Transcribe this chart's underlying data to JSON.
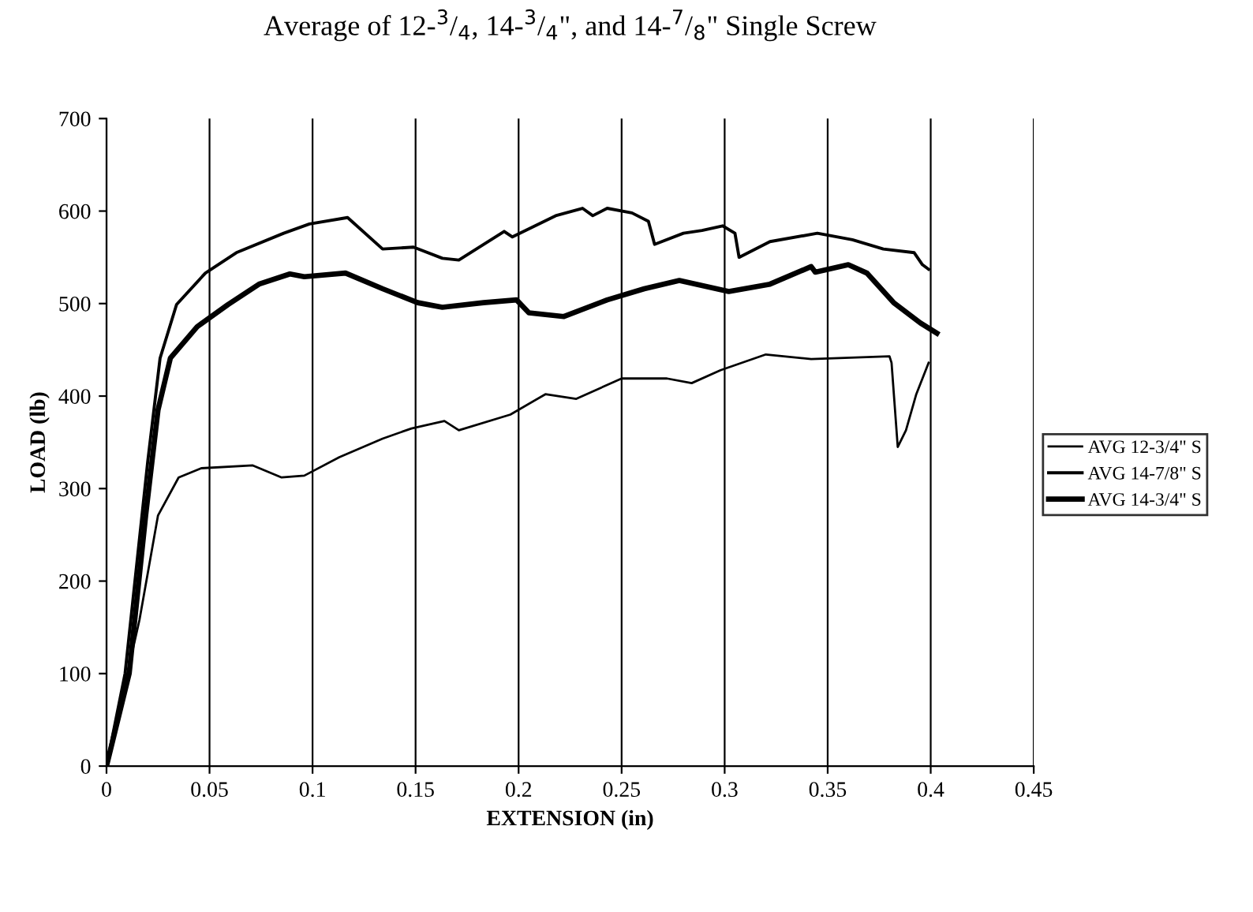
{
  "chart_data": {
    "type": "line",
    "title": "Average of 12-$^{3}$/$_{4}$, 14-$^{3}$/$_{4}$\", and 14-$^{7}$/$_{8}$\" Single Screw",
    "xlabel": "EXTENSION (in)",
    "ylabel": "LOAD (lb)",
    "xlim": [
      0,
      0.45
    ],
    "xticks": [
      0,
      0.05,
      0.1,
      0.15,
      0.2,
      0.25,
      0.3,
      0.35,
      0.4,
      0.45
    ],
    "ylim": [
      0,
      700
    ],
    "yticks": [
      0,
      100,
      200,
      300,
      400,
      500,
      600,
      700
    ],
    "grid": "x",
    "legend": "right",
    "marker": "none",
    "line_style": "solid",
    "series": [
      {
        "name": "AVG 12-3/4\" S",
        "color": "#000000",
        "x": [
          0,
          0.016,
          0.025,
          0.035,
          0.046,
          0.071,
          0.085,
          0.096,
          0.113,
          0.134,
          0.148,
          0.164,
          0.171,
          0.196,
          0.213,
          0.228,
          0.25,
          0.259,
          0.272,
          0.284,
          0.298,
          0.32,
          0.342,
          0.38,
          0.381,
          0.384,
          0.388,
          0.393,
          0.399
        ],
        "values": [
          0,
          158,
          271,
          312,
          322,
          325,
          312,
          314,
          334,
          354,
          365,
          373,
          363,
          380,
          402,
          397,
          419,
          419,
          419,
          414,
          428,
          445,
          440,
          443,
          436,
          345,
          363,
          402,
          436
        ]
      },
      {
        "name": "AVG 14-7/8\" S",
        "color": "#000000",
        "x": [
          0,
          0.009,
          0.02,
          0.026,
          0.034,
          0.048,
          0.063,
          0.086,
          0.0985,
          0.117,
          0.134,
          0.149,
          0.163,
          0.171,
          0.193,
          0.197,
          0.218,
          0.231,
          0.236,
          0.243,
          0.255,
          0.263,
          0.266,
          0.28,
          0.289,
          0.299,
          0.305,
          0.307,
          0.322,
          0.345,
          0.362,
          0.377,
          0.392,
          0.396,
          0.399
        ],
        "values": [
          0,
          100,
          329,
          441,
          499,
          533,
          555,
          576,
          586,
          593,
          559,
          561,
          549,
          547,
          578,
          572,
          595,
          603,
          595,
          603,
          598,
          589,
          564,
          576,
          579,
          584,
          576,
          550,
          567,
          576,
          569,
          559,
          555,
          542,
          537
        ]
      },
      {
        "name": "AVG 14-3/4\" S",
        "color": "#000000",
        "x": [
          0,
          0.011,
          0.019,
          0.025,
          0.031,
          0.044,
          0.059,
          0.074,
          0.089,
          0.096,
          0.116,
          0.134,
          0.151,
          0.163,
          0.183,
          0.199,
          0.205,
          0.222,
          0.243,
          0.261,
          0.278,
          0.302,
          0.322,
          0.342,
          0.344,
          0.36,
          0.369,
          0.382,
          0.395,
          0.403
        ],
        "values": [
          0,
          100,
          271,
          385,
          441,
          475,
          499,
          521,
          532,
          529,
          533,
          516,
          501,
          496,
          501,
          504,
          490,
          486,
          504,
          516,
          525,
          513,
          521,
          540,
          534,
          542,
          533,
          501,
          479,
          468
        ]
      }
    ]
  }
}
